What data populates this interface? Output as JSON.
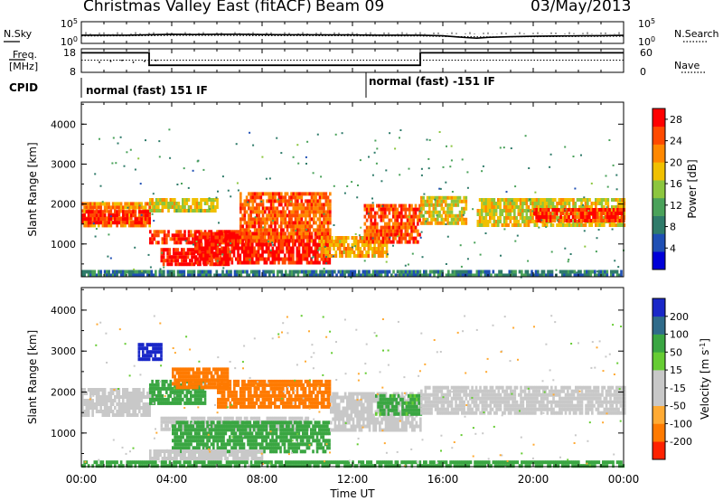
{
  "header": {
    "station": "Christmas Valley East (fitACF)",
    "beam": "Beam 09",
    "date": "03/May/2013"
  },
  "chart_data": [
    {
      "type": "line",
      "title": "",
      "left_label": "N.Sky",
      "right_label": "N.Search",
      "yticks_left": [
        "10^5",
        "10^0"
      ],
      "yticks_right": [
        "10^5",
        "10^0"
      ],
      "series": [
        {
          "name": "N.Sky",
          "style": "solid",
          "x": [
            0,
            1,
            2,
            3,
            4,
            5,
            6,
            7,
            8,
            9,
            10,
            11,
            12,
            13,
            14,
            15,
            16,
            17,
            17.5,
            18,
            19,
            20,
            21,
            22,
            23,
            24
          ],
          "y": [
            1.9,
            1.9,
            1.9,
            2.0,
            2.1,
            2.05,
            2.1,
            2.1,
            2.05,
            2.0,
            2.0,
            1.95,
            1.95,
            1.9,
            1.9,
            1.9,
            1.75,
            1.35,
            1.2,
            1.4,
            1.55,
            1.65,
            1.7,
            1.75,
            1.8,
            1.85
          ]
        },
        {
          "name": "N.Search",
          "style": "dotted",
          "x": [
            0,
            2,
            3,
            4,
            6,
            8,
            10,
            12,
            14,
            15,
            16,
            18,
            20,
            22,
            24
          ],
          "y": [
            1.7,
            1.75,
            1.8,
            1.85,
            1.85,
            1.8,
            1.8,
            1.75,
            1.7,
            1.7,
            1.6,
            1.5,
            1.55,
            1.6,
            1.65
          ]
        }
      ]
    },
    {
      "type": "line",
      "left_label_1": "Freq.",
      "left_label_2": "[MHz]",
      "right_label": "Nave",
      "yticks_left": [
        "18",
        "8"
      ],
      "yticks_right": [
        "60",
        "0"
      ],
      "series": [
        {
          "name": "Freq.",
          "style": "solid",
          "x": [
            0,
            3,
            3,
            15,
            15,
            24
          ],
          "y": [
            16.3,
            16.3,
            11.0,
            11.0,
            16.3,
            16.3
          ]
        },
        {
          "name": "Nave",
          "style": "dotted",
          "x": [
            0,
            24
          ],
          "y": [
            13.2,
            13.2
          ]
        }
      ]
    },
    {
      "type": "table",
      "label": "CPID",
      "entries": [
        {
          "start_hour": 0,
          "text": "normal (fast) 151 IF"
        },
        {
          "start_hour": 12.6,
          "text": "normal (fast) -151 IF"
        }
      ]
    },
    {
      "type": "heatmap",
      "quantity": "Power",
      "ylabel": "Slant Range [km]",
      "ylim": [
        180,
        4550
      ],
      "yticks": [
        1000,
        2000,
        3000,
        4000
      ],
      "colorbar": {
        "label": "Power [dB]",
        "ticks": [
          4,
          8,
          12,
          16,
          20,
          24,
          28
        ],
        "range": [
          0,
          30
        ]
      },
      "bands": [
        {
          "start": 0,
          "end": 3,
          "lower": 1450,
          "upper": 2050,
          "value": 22
        },
        {
          "start": 0,
          "end": 3,
          "lower": 1550,
          "upper": 1850,
          "value": 28
        },
        {
          "start": 3,
          "end": 6,
          "lower": 1800,
          "upper": 2150,
          "value": 17
        },
        {
          "start": 3,
          "end": 7.5,
          "lower": 1050,
          "upper": 1350,
          "value": 26
        },
        {
          "start": 3.5,
          "end": 6.5,
          "lower": 500,
          "upper": 900,
          "value": 29
        },
        {
          "start": 5,
          "end": 11,
          "lower": 500,
          "upper": 1300,
          "value": 28
        },
        {
          "start": 7,
          "end": 11,
          "lower": 1100,
          "upper": 2300,
          "value": 24
        },
        {
          "start": 10.5,
          "end": 13.5,
          "lower": 700,
          "upper": 1200,
          "value": 20
        },
        {
          "start": 12.5,
          "end": 15,
          "lower": 1050,
          "upper": 2000,
          "value": 25
        },
        {
          "start": 15,
          "end": 17,
          "lower": 1500,
          "upper": 2200,
          "value": 18
        },
        {
          "start": 17.5,
          "end": 24,
          "lower": 1450,
          "upper": 2150,
          "value": 18
        },
        {
          "start": 20,
          "end": 24,
          "lower": 1550,
          "upper": 1900,
          "value": 26
        },
        {
          "start": 0,
          "end": 24,
          "lower": 200,
          "upper": 350,
          "value": 8
        }
      ]
    },
    {
      "type": "heatmap",
      "quantity": "Velocity",
      "ylabel": "Slant Range [km]",
      "ylim": [
        180,
        4550
      ],
      "yticks": [
        1000,
        2000,
        3000,
        4000
      ],
      "xlabel": "Time UT",
      "xticks": [
        "00:00",
        "04:00",
        "08:00",
        "12:00",
        "16:00",
        "20:00",
        "00:00"
      ],
      "colorbar": {
        "label": "Velocity [m s^-1]",
        "ticks": [
          200,
          100,
          50,
          15,
          -15,
          -50,
          -100,
          -200
        ],
        "range": [
          -250,
          250
        ]
      },
      "bands": [
        {
          "start": 0,
          "end": 3,
          "lower": 1400,
          "upper": 2100,
          "value": 0
        },
        {
          "start": 2.5,
          "end": 3.5,
          "lower": 2800,
          "upper": 3200,
          "value": 220
        },
        {
          "start": 3,
          "end": 5.5,
          "lower": 1700,
          "upper": 2300,
          "value": 55
        },
        {
          "start": 4,
          "end": 6.5,
          "lower": 2100,
          "upper": 2600,
          "value": -75
        },
        {
          "start": 6,
          "end": 11,
          "lower": 1600,
          "upper": 2300,
          "value": -80
        },
        {
          "start": 3.5,
          "end": 10,
          "lower": 1050,
          "upper": 1400,
          "value": 0
        },
        {
          "start": 4,
          "end": 11,
          "lower": 550,
          "upper": 1300,
          "value": 60
        },
        {
          "start": 3,
          "end": 8,
          "lower": 400,
          "upper": 600,
          "value": 0
        },
        {
          "start": 11,
          "end": 15,
          "lower": 1050,
          "upper": 2000,
          "value": 0
        },
        {
          "start": 13,
          "end": 15,
          "lower": 1450,
          "upper": 1950,
          "value": 40
        },
        {
          "start": 15,
          "end": 24,
          "lower": 1450,
          "upper": 2150,
          "value": 0
        },
        {
          "start": 0,
          "end": 24,
          "lower": 200,
          "upper": 330,
          "value": 45
        }
      ]
    }
  ],
  "colors": {
    "power_scale": [
      "#0000d8",
      "#1f4fb4",
      "#2f7b6a",
      "#4aa25a",
      "#8cc63e",
      "#f0c000",
      "#ff8800",
      "#ff4a00",
      "#ff0000"
    ],
    "velocity_scale": {
      "pos_high": "#1a28c8",
      "pos_mid": "#2f6b8a",
      "pos_low": "#3aa642",
      "pos_small": "#66cc33",
      "neutral": "#c8c8c8",
      "neg_small": "#ffaa33",
      "neg_mid": "#ff7a00",
      "neg_high": "#ff2200"
    }
  }
}
